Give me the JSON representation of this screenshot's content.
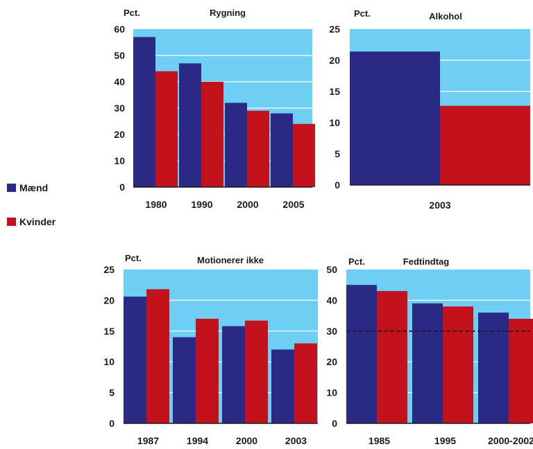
{
  "colors": {
    "men": "#2a2a86",
    "women": "#c4121d",
    "plot_bg": "#6fcef4"
  },
  "legend": [
    {
      "label": "Mænd",
      "color": "#2a2a86"
    },
    {
      "label": "Kvinder",
      "color": "#c4121d"
    }
  ],
  "chart_data": [
    {
      "type": "bar",
      "title": "Rygning",
      "ylabel": "Pct.",
      "categories": [
        "1980",
        "1990",
        "2000",
        "2005"
      ],
      "series": [
        {
          "name": "Mænd",
          "values": [
            57,
            47,
            32,
            28
          ]
        },
        {
          "name": "Kvinder",
          "values": [
            44,
            40,
            29,
            24
          ]
        }
      ],
      "ylim": [
        0,
        60
      ],
      "yticks": [
        "0",
        "10",
        "20",
        "30",
        "40",
        "50",
        "60"
      ]
    },
    {
      "type": "bar",
      "title": "Alkohol",
      "ylabel": "Pct.",
      "categories": [
        "2003"
      ],
      "series": [
        {
          "name": "Mænd",
          "values": [
            21.4
          ]
        },
        {
          "name": "Kvinder",
          "values": [
            12.7
          ]
        }
      ],
      "ylim": [
        0,
        25
      ],
      "yticks": [
        "0",
        "5",
        "10",
        "15",
        "20",
        "25"
      ]
    },
    {
      "type": "bar",
      "title": "Motionerer ikke",
      "ylabel": "Pct.",
      "categories": [
        "1987",
        "1994",
        "2000",
        "2003"
      ],
      "series": [
        {
          "name": "Mænd",
          "values": [
            20.6,
            14,
            15.8,
            12
          ]
        },
        {
          "name": "Kvinder",
          "values": [
            21.8,
            17,
            16.7,
            13
          ]
        }
      ],
      "ylim": [
        0,
        25
      ],
      "yticks": [
        "0",
        "5",
        "10",
        "15",
        "20",
        "25"
      ]
    },
    {
      "type": "bar",
      "title": "Fedtindtag",
      "ylabel": "Pct.",
      "categories": [
        "1985",
        "1995",
        "2000-2002"
      ],
      "series": [
        {
          "name": "Mænd",
          "values": [
            45,
            39,
            36
          ]
        },
        {
          "name": "Kvinder",
          "values": [
            43,
            38,
            34
          ]
        }
      ],
      "ylim": [
        0,
        50
      ],
      "yticks": [
        "0",
        "10",
        "20",
        "30",
        "40",
        "50"
      ],
      "reference_line": 30
    }
  ]
}
